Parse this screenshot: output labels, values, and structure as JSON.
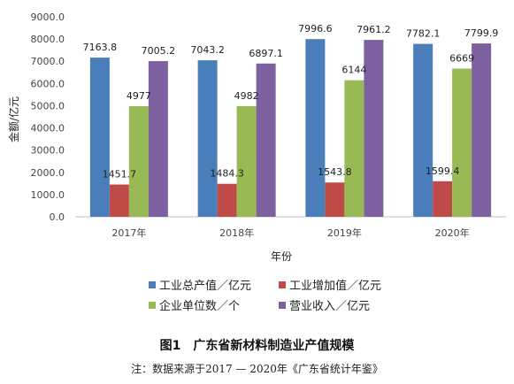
{
  "chart_data": {
    "type": "bar",
    "categories": [
      "2017年",
      "2018年",
      "2019年",
      "2020年"
    ],
    "series": [
      {
        "name": "工业总产值／亿元",
        "color": "#4a7ebb",
        "values": [
          7163.8,
          7043.2,
          7996.6,
          7782.1
        ],
        "labels": [
          "7163.8",
          "7043.2",
          "7996.6",
          "7782.1"
        ]
      },
      {
        "name": "工业增加值／亿元",
        "color": "#be4b48",
        "values": [
          1451.7,
          1484.3,
          1543.8,
          1599.4
        ],
        "labels": [
          "1451.7",
          "1484.3",
          "1543.8",
          "1599.4"
        ]
      },
      {
        "name": "企业单位数／个",
        "color": "#98b954",
        "values": [
          4977,
          4982,
          6144,
          6669
        ],
        "labels": [
          "4977",
          "4982",
          "6144",
          "6669"
        ]
      },
      {
        "name": "营业收入／亿元",
        "color": "#7d60a0",
        "values": [
          7005.2,
          6897.1,
          7961.2,
          7799.9
        ],
        "labels": [
          "7005.2",
          "6897.1",
          "7961.2",
          "7799.9"
        ]
      }
    ],
    "xlabel": "年份",
    "ylabel": "金额/亿元",
    "ylim": [
      0,
      9000
    ],
    "yticks": [
      "0.0",
      "1000.0",
      "2000.0",
      "3000.0",
      "4000.0",
      "5000.0",
      "6000.0",
      "7000.0",
      "8000.0",
      "9000.0"
    ],
    "grid": false,
    "legend_position": "bottom"
  },
  "caption": {
    "title": "图1　广东省新材料制造业产值规模",
    "note": "注：数据来源于2017 — 2020年《广东省统计年鉴》"
  }
}
